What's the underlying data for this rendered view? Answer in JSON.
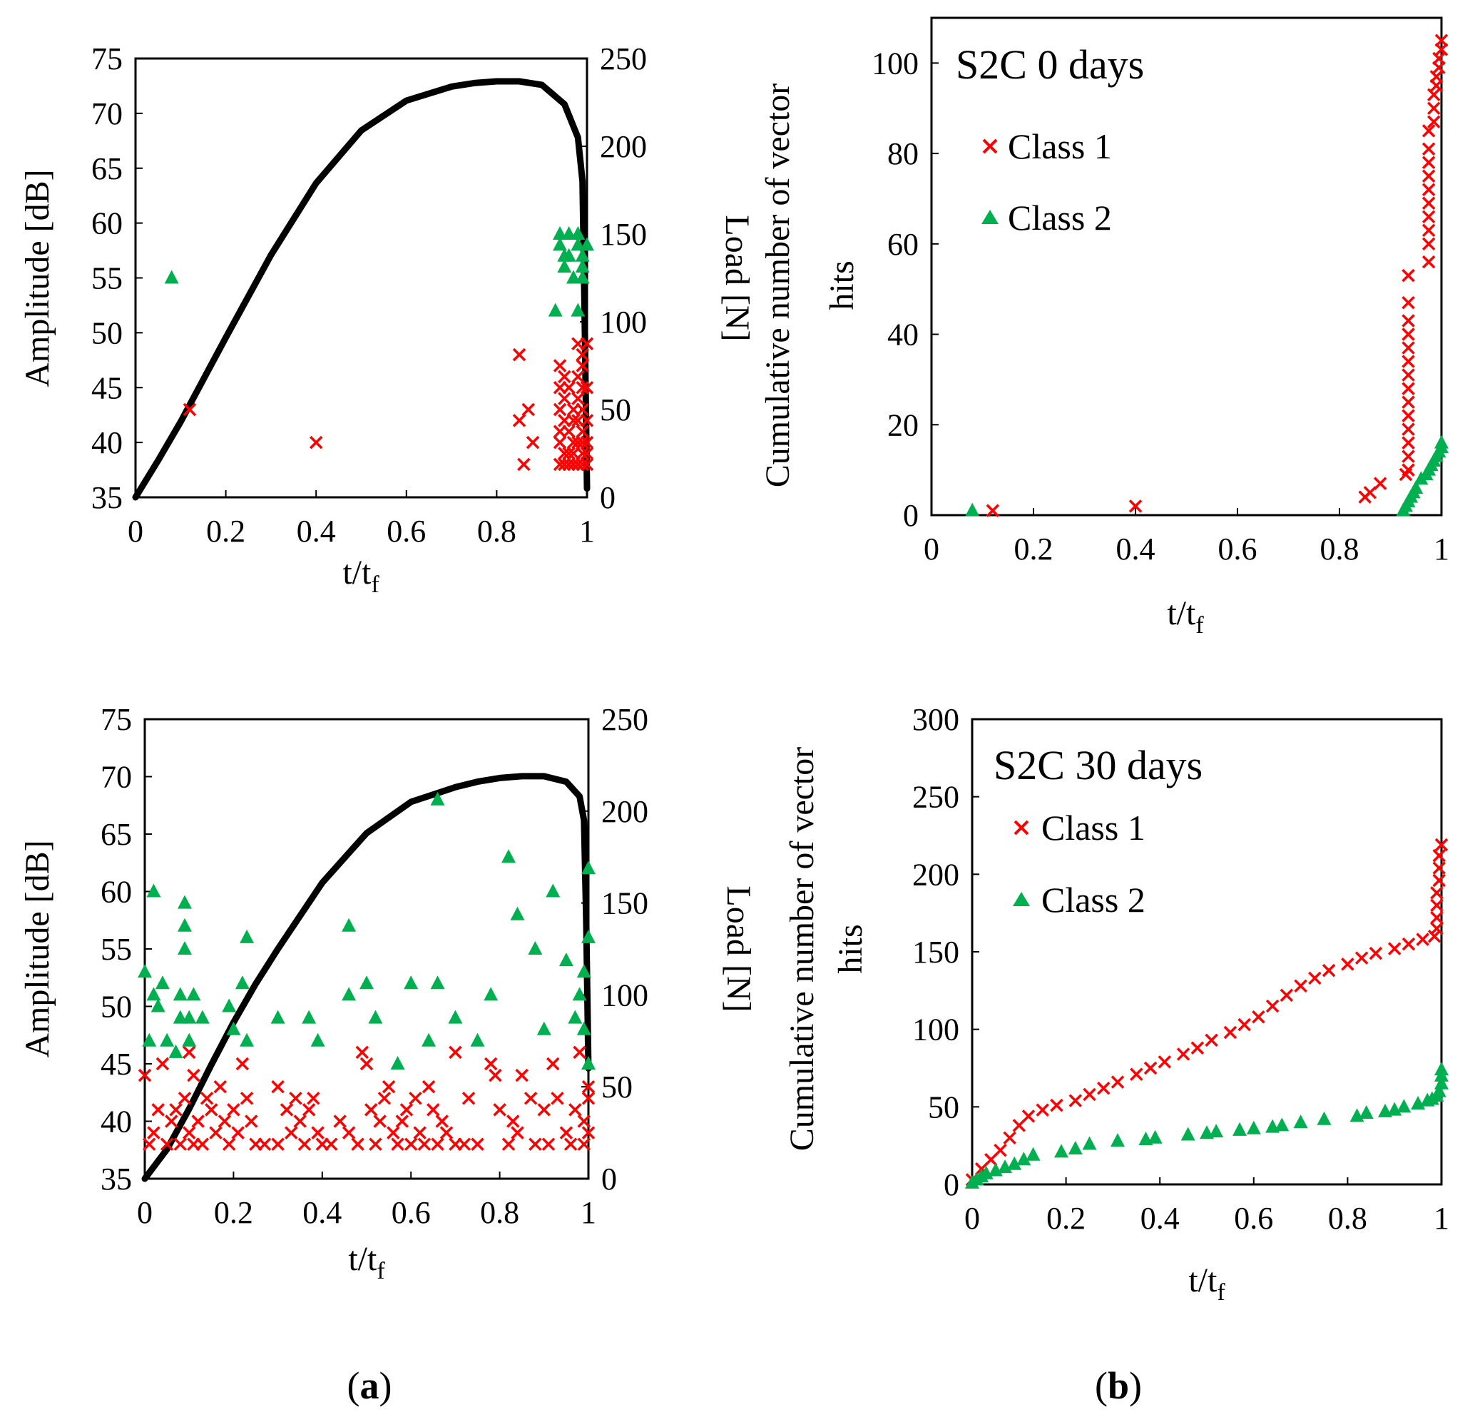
{
  "figure": {
    "caption_a_letter": "a",
    "caption_b_letter": "b",
    "colors": {
      "class1": "#ff0000",
      "class2": "#00b050",
      "load": "#000000"
    }
  },
  "chart_data": [
    {
      "id": "a_top",
      "type": "scatter",
      "title": "",
      "xlabel": "t/t",
      "xlabel_sub": "f",
      "ylabel": "Amplitude [dB]",
      "y2label": "Load [N]",
      "xlim": [
        0,
        1
      ],
      "ylim": [
        35,
        75
      ],
      "y2lim": [
        0,
        250
      ],
      "x_ticks": [
        0,
        0.2,
        0.4,
        0.6,
        0.8,
        1
      ],
      "x_tick_labels": [
        "0",
        "0.2",
        "0.4",
        "0.6",
        "0.8",
        "1"
      ],
      "y_ticks": [
        35,
        40,
        45,
        50,
        55,
        60,
        65,
        70,
        75
      ],
      "y_tick_labels": [
        "35",
        "40",
        "45",
        "50",
        "55",
        "60",
        "65",
        "70",
        "75"
      ],
      "y2_ticks": [
        0,
        50,
        100,
        150,
        200,
        250
      ],
      "y2_tick_labels": [
        "0",
        "50",
        "100",
        "150",
        "200",
        "250"
      ],
      "load_curve": {
        "name": "Load",
        "x": [
          0,
          0.05,
          0.1,
          0.15,
          0.2,
          0.3,
          0.4,
          0.5,
          0.6,
          0.7,
          0.75,
          0.8,
          0.85,
          0.9,
          0.95,
          0.98,
          0.99,
          0.995,
          1.0
        ],
        "y": [
          0,
          21,
          43,
          67,
          91,
          138,
          179,
          209,
          226,
          234,
          236,
          237,
          237,
          235,
          224,
          205,
          180,
          100,
          5
        ]
      },
      "series": [
        {
          "name": "Class 1",
          "marker": "x",
          "x": [
            0.12,
            0.4,
            0.85,
            0.85,
            0.86,
            0.87,
            0.88,
            0.94,
            0.94,
            0.94,
            0.94,
            0.94,
            0.94,
            0.95,
            0.95,
            0.95,
            0.95,
            0.95,
            0.96,
            0.96,
            0.96,
            0.96,
            0.97,
            0.97,
            0.97,
            0.97,
            0.97,
            0.98,
            0.98,
            0.98,
            0.98,
            0.98,
            0.98,
            0.99,
            0.99,
            0.99,
            0.99,
            0.99,
            0.99,
            0.99,
            0.99,
            1.0,
            1.0,
            1.0,
            1.0,
            1.0,
            1.0
          ],
          "y": [
            43,
            40,
            48,
            42,
            38,
            43,
            40,
            47,
            45,
            43,
            41,
            40,
            38,
            46,
            44,
            42,
            39,
            38,
            45,
            41,
            39,
            38,
            43,
            42,
            40,
            39,
            38,
            49,
            46,
            44,
            42,
            40,
            38,
            48,
            47,
            45,
            43,
            41,
            40,
            39,
            38,
            49,
            45,
            42,
            40,
            39,
            38
          ]
        },
        {
          "name": "Class 2",
          "marker": "triangle",
          "x": [
            0.08,
            0.93,
            0.94,
            0.94,
            0.95,
            0.95,
            0.96,
            0.96,
            0.97,
            0.98,
            0.98,
            0.98,
            0.99,
            0.99,
            0.99,
            1.0
          ],
          "y": [
            55,
            52,
            59,
            58,
            57,
            56,
            59,
            57,
            55,
            59,
            58,
            52,
            57,
            56,
            55,
            58
          ]
        }
      ]
    },
    {
      "id": "b_top",
      "type": "scatter",
      "title": "S2C 0 days",
      "xlabel": "t/t",
      "xlabel_sub": "f",
      "ylabel_line1": "Cumulative number of vector",
      "ylabel_line2": "hits",
      "xlim": [
        0,
        1
      ],
      "ylim": [
        0,
        110
      ],
      "x_ticks": [
        0,
        0.2,
        0.4,
        0.6,
        0.8,
        1
      ],
      "x_tick_labels": [
        "0",
        "0.2",
        "0.4",
        "0.6",
        "0.8",
        "1"
      ],
      "y_ticks": [
        0,
        20,
        40,
        60,
        80,
        100
      ],
      "y_tick_labels": [
        "0",
        "20",
        "40",
        "60",
        "80",
        "100"
      ],
      "legend_position": "top-left",
      "series": [
        {
          "name": "Class 1",
          "marker": "x",
          "x": [
            0.12,
            0.4,
            0.85,
            0.86,
            0.88,
            0.93,
            0.935,
            0.935,
            0.935,
            0.935,
            0.935,
            0.935,
            0.935,
            0.935,
            0.935,
            0.935,
            0.935,
            0.935,
            0.935,
            0.935,
            0.975,
            0.975,
            0.975,
            0.975,
            0.975,
            0.975,
            0.975,
            0.975,
            0.975,
            0.975,
            0.985,
            0.985,
            0.985,
            0.99,
            0.99,
            0.995,
            0.995,
            1.0,
            1.0
          ],
          "y": [
            1,
            2,
            4,
            5,
            7,
            9,
            10,
            13,
            16,
            19,
            22,
            25,
            28,
            31,
            34,
            37,
            40,
            43,
            47,
            53,
            56,
            60,
            63,
            66,
            69,
            72,
            75,
            78,
            81,
            85,
            87,
            90,
            93,
            95,
            97,
            99,
            101,
            103,
            105
          ]
        },
        {
          "name": "Class 2",
          "marker": "triangle",
          "x": [
            0.08,
            0.925,
            0.93,
            0.935,
            0.94,
            0.945,
            0.95,
            0.96,
            0.97,
            0.975,
            0.98,
            0.985,
            0.99,
            0.995,
            1.0,
            1.0
          ],
          "y": [
            1,
            1,
            2,
            3,
            4,
            5,
            6,
            8,
            9,
            10,
            11,
            12,
            13,
            14,
            15,
            16
          ]
        }
      ]
    },
    {
      "id": "a_bottom",
      "type": "scatter",
      "title": "",
      "xlabel": "t/t",
      "xlabel_sub": "f",
      "ylabel": "Amplitude [dB]",
      "y2label": "Load [N]",
      "xlim": [
        0,
        1
      ],
      "ylim": [
        35,
        75
      ],
      "y2lim": [
        0,
        250
      ],
      "x_ticks": [
        0,
        0.2,
        0.4,
        0.6,
        0.8,
        1
      ],
      "x_tick_labels": [
        "0",
        "0.2",
        "0.4",
        "0.6",
        "0.8",
        "1"
      ],
      "y_ticks": [
        35,
        40,
        45,
        50,
        55,
        60,
        65,
        70,
        75
      ],
      "y_tick_labels": [
        "35",
        "40",
        "45",
        "50",
        "55",
        "60",
        "65",
        "70",
        "75"
      ],
      "y2_ticks": [
        0,
        50,
        100,
        150,
        200,
        250
      ],
      "y2_tick_labels": [
        "0",
        "50",
        "100",
        "150",
        "200",
        "250"
      ],
      "load_curve": {
        "name": "Load",
        "x": [
          0,
          0.05,
          0.1,
          0.15,
          0.2,
          0.25,
          0.3,
          0.4,
          0.5,
          0.6,
          0.7,
          0.75,
          0.8,
          0.85,
          0.9,
          0.95,
          0.98,
          0.99,
          0.995,
          1.0
        ],
        "y": [
          0,
          16,
          38,
          62,
          85,
          106,
          125,
          161,
          188,
          205,
          213,
          216,
          218,
          219,
          219,
          216,
          208,
          195,
          140,
          60
        ]
      },
      "series": [
        {
          "name": "Class 1",
          "marker": "x",
          "x": [
            0.0,
            0.01,
            0.02,
            0.03,
            0.04,
            0.05,
            0.06,
            0.07,
            0.08,
            0.09,
            0.1,
            0.1,
            0.11,
            0.11,
            0.12,
            0.13,
            0.14,
            0.15,
            0.16,
            0.17,
            0.18,
            0.19,
            0.2,
            0.21,
            0.22,
            0.23,
            0.24,
            0.25,
            0.27,
            0.3,
            0.3,
            0.32,
            0.33,
            0.34,
            0.35,
            0.36,
            0.37,
            0.38,
            0.39,
            0.4,
            0.42,
            0.44,
            0.46,
            0.48,
            0.49,
            0.5,
            0.51,
            0.52,
            0.53,
            0.54,
            0.55,
            0.56,
            0.57,
            0.58,
            0.59,
            0.6,
            0.61,
            0.62,
            0.63,
            0.64,
            0.65,
            0.66,
            0.67,
            0.68,
            0.7,
            0.7,
            0.72,
            0.73,
            0.75,
            0.78,
            0.79,
            0.8,
            0.82,
            0.83,
            0.84,
            0.85,
            0.87,
            0.88,
            0.9,
            0.91,
            0.92,
            0.93,
            0.95,
            0.96,
            0.97,
            0.98,
            0.99,
            0.99,
            1.0,
            1.0,
            1.0
          ],
          "y": [
            44,
            38,
            39,
            41,
            45,
            38,
            40,
            41,
            38,
            42,
            46,
            39,
            44,
            38,
            40,
            38,
            42,
            41,
            39,
            43,
            40,
            38,
            41,
            39,
            45,
            42,
            40,
            38,
            38,
            43,
            38,
            41,
            39,
            42,
            40,
            38,
            41,
            42,
            39,
            38,
            38,
            40,
            39,
            38,
            46,
            45,
            41,
            38,
            40,
            42,
            43,
            39,
            38,
            40,
            41,
            38,
            42,
            39,
            38,
            43,
            41,
            38,
            40,
            39,
            38,
            46,
            38,
            42,
            38,
            45,
            44,
            41,
            38,
            40,
            39,
            44,
            42,
            38,
            41,
            38,
            45,
            42,
            39,
            38,
            41,
            46,
            40,
            38,
            43,
            39,
            42
          ]
        },
        {
          "name": "Class 2",
          "marker": "triangle",
          "x": [
            0.0,
            0.01,
            0.02,
            0.02,
            0.03,
            0.04,
            0.05,
            0.07,
            0.08,
            0.08,
            0.09,
            0.09,
            0.09,
            0.1,
            0.1,
            0.11,
            0.13,
            0.19,
            0.2,
            0.22,
            0.23,
            0.23,
            0.3,
            0.37,
            0.39,
            0.46,
            0.46,
            0.5,
            0.52,
            0.57,
            0.6,
            0.64,
            0.66,
            0.66,
            0.7,
            0.75,
            0.78,
            0.82,
            0.84,
            0.88,
            0.9,
            0.92,
            0.95,
            0.97,
            0.98,
            0.99,
            0.99,
            1.0,
            1.0,
            1.0
          ],
          "y": [
            53,
            47,
            51,
            60,
            50,
            52,
            47,
            46,
            51,
            49,
            57,
            55,
            59,
            49,
            47,
            51,
            49,
            50,
            48,
            52,
            56,
            47,
            49,
            49,
            47,
            57,
            51,
            52,
            49,
            45,
            52,
            47,
            68,
            52,
            49,
            47,
            51,
            63,
            58,
            55,
            48,
            60,
            54,
            49,
            51,
            53,
            48,
            62,
            56,
            45
          ]
        }
      ]
    },
    {
      "id": "b_bottom",
      "type": "scatter",
      "title": "S2C 30 days",
      "xlabel": "t/t",
      "xlabel_sub": "f",
      "ylabel_line1": "Cumulative number of vector",
      "ylabel_line2": "hits",
      "xlim": [
        0,
        1
      ],
      "ylim": [
        0,
        300
      ],
      "x_ticks": [
        0,
        0.2,
        0.4,
        0.6,
        0.8,
        1
      ],
      "x_tick_labels": [
        "0",
        "0.2",
        "0.4",
        "0.6",
        "0.8",
        "1"
      ],
      "y_ticks": [
        0,
        50,
        100,
        150,
        200,
        250,
        300
      ],
      "y_tick_labels": [
        "0",
        "50",
        "100",
        "150",
        "200",
        "250",
        "300"
      ],
      "legend_position": "top-left",
      "series": [
        {
          "name": "Class 1",
          "marker": "x",
          "x": [
            0.0,
            0.02,
            0.04,
            0.06,
            0.08,
            0.1,
            0.12,
            0.15,
            0.18,
            0.22,
            0.25,
            0.28,
            0.31,
            0.35,
            0.38,
            0.41,
            0.45,
            0.48,
            0.51,
            0.55,
            0.58,
            0.61,
            0.64,
            0.67,
            0.7,
            0.73,
            0.76,
            0.8,
            0.83,
            0.86,
            0.9,
            0.93,
            0.96,
            0.985,
            0.99,
            0.99,
            0.99,
            0.99,
            0.995,
            0.995,
            0.995,
            1.0
          ],
          "y": [
            3,
            10,
            16,
            22,
            30,
            38,
            44,
            48,
            51,
            54,
            58,
            62,
            66,
            71,
            75,
            79,
            84,
            88,
            93,
            98,
            103,
            108,
            115,
            122,
            128,
            133,
            138,
            142,
            146,
            149,
            152,
            155,
            158,
            160,
            165,
            172,
            180,
            188,
            196,
            204,
            212,
            219
          ]
        },
        {
          "name": "Class 2",
          "marker": "triangle",
          "x": [
            0.0,
            0.01,
            0.02,
            0.03,
            0.05,
            0.07,
            0.09,
            0.11,
            0.13,
            0.19,
            0.22,
            0.25,
            0.31,
            0.37,
            0.39,
            0.46,
            0.5,
            0.52,
            0.57,
            0.6,
            0.64,
            0.66,
            0.7,
            0.75,
            0.82,
            0.84,
            0.88,
            0.9,
            0.92,
            0.95,
            0.97,
            0.98,
            0.99,
            0.995,
            1.0,
            1.0,
            1.0
          ],
          "y": [
            1,
            3,
            5,
            7,
            9,
            11,
            13,
            16,
            19,
            21,
            23,
            26,
            28,
            29,
            30,
            32,
            33,
            34,
            35,
            36,
            37,
            38,
            40,
            42,
            44,
            46,
            47,
            48,
            50,
            52,
            54,
            55,
            57,
            60,
            65,
            70,
            74
          ]
        }
      ]
    }
  ]
}
